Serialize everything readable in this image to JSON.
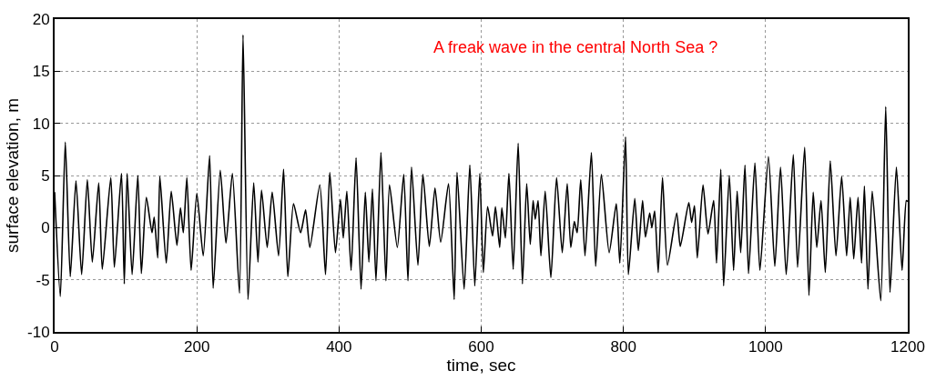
{
  "chart_data": {
    "type": "line",
    "xlabel": "time, sec",
    "ylabel": "surface elevation, m",
    "annotations": [
      "A freak wave in the central North Sea ?"
    ],
    "xlim": [
      0,
      1200
    ],
    "xticks": [
      0,
      200,
      400,
      600,
      800,
      1000,
      1200
    ],
    "ylim": [
      -10,
      20
    ],
    "yticks": [
      -10,
      -5,
      0,
      5,
      10,
      15,
      20
    ],
    "grid": true,
    "marker": "none",
    "line_style": "solid",
    "x": [
      0,
      8,
      15,
      22,
      30,
      38,
      46,
      53,
      62,
      67,
      79,
      84,
      94,
      98,
      102,
      109,
      117,
      122,
      129,
      137,
      140,
      145,
      148,
      157,
      164,
      172,
      177,
      181,
      186,
      192,
      200,
      209,
      218,
      223,
      233,
      241,
      250,
      260,
      265,
      272,
      280,
      286,
      291,
      299,
      306,
      315,
      322,
      328,
      336,
      346,
      353,
      359,
      373,
      381,
      387,
      395,
      402,
      406,
      411,
      417,
      424,
      431,
      437,
      442,
      447,
      452,
      459,
      466,
      471,
      482,
      491,
      497,
      502,
      511,
      518,
      527,
      535,
      543,
      554,
      562,
      566,
      576,
      584,
      591,
      598,
      603,
      609,
      616,
      620,
      626,
      629,
      634,
      639,
      645,
      652,
      658,
      664,
      669,
      673,
      676,
      680,
      684,
      690,
      698,
      706,
      714,
      721,
      726,
      731,
      735,
      740,
      746,
      755,
      761,
      769,
      780,
      790,
      795,
      803,
      807,
      816,
      821,
      827,
      831,
      837,
      840,
      844,
      849,
      855,
      862,
      875,
      880,
      892,
      896,
      900,
      904,
      912,
      919,
      927,
      931,
      937,
      941,
      949,
      955,
      960,
      965,
      971,
      976,
      985,
      992,
      1004,
      1013,
      1021,
      1029,
      1039,
      1045,
      1055,
      1061,
      1067,
      1072,
      1078,
      1084,
      1091,
      1099,
      1107,
      1114,
      1119,
      1124,
      1130,
      1135,
      1139,
      1144,
      1150,
      1162,
      1169,
      1175,
      1184,
      1192,
      1198,
      1200
    ],
    "series": [
      {
        "color": "#000000",
        "values": [
          3.4,
          -6.6,
          8.2,
          -4.7,
          4.5,
          -4.5,
          4.6,
          -3.3,
          4.3,
          -4.0,
          4.8,
          -3.8,
          5.2,
          -5.4,
          5.2,
          -4.5,
          5.0,
          -4.4,
          2.9,
          -0.5,
          1.0,
          -2.9,
          4.9,
          -3.4,
          3.5,
          -1.7,
          1.9,
          -0.5,
          4.8,
          -4.1,
          3.3,
          -2.7,
          6.9,
          -5.8,
          5.5,
          -1.5,
          5.2,
          -6.3,
          18.5,
          -6.9,
          4.3,
          -3.3,
          3.6,
          -1.9,
          3.4,
          -2.7,
          5.6,
          -4.7,
          2.3,
          -0.5,
          1.7,
          -1.9,
          4.1,
          -4.5,
          5.3,
          -2.4,
          2.7,
          -1.0,
          3.5,
          -4.1,
          6.7,
          -5.9,
          3.4,
          -3.3,
          3.7,
          -5.1,
          7.2,
          -5.1,
          4.1,
          -1.9,
          5.1,
          -5.1,
          5.8,
          -3.6,
          5.1,
          -1.8,
          3.8,
          -1.4,
          4.2,
          -6.9,
          5.3,
          -5.9,
          6.0,
          -5.6,
          5.2,
          -4.3,
          2.0,
          -0.8,
          2.0,
          -1.9,
          1.9,
          -1.0,
          5.2,
          -4.0,
          8.1,
          -5.4,
          4.2,
          -1.6,
          2.6,
          0.8,
          2.6,
          -2.7,
          3.5,
          -4.8,
          4.8,
          -2.4,
          4.2,
          -1.9,
          0.6,
          -0.5,
          4.6,
          -2.7,
          7.2,
          -3.7,
          5.1,
          -2.4,
          2.3,
          -3.4,
          8.7,
          -4.5,
          2.8,
          -2.2,
          2.6,
          -0.9,
          1.4,
          0.0,
          1.6,
          -4.3,
          4.8,
          -3.6,
          1.4,
          -1.8,
          2.4,
          0.5,
          2.1,
          -2.9,
          4.1,
          -0.6,
          2.6,
          -3.4,
          5.6,
          -5.6,
          5.0,
          -4.1,
          3.5,
          -2.4,
          6.0,
          -4.4,
          6.2,
          -4.1,
          6.8,
          -3.7,
          5.8,
          -4.5,
          7.0,
          -3.8,
          7.7,
          -6.5,
          3.4,
          -1.9,
          2.6,
          -4.3,
          6.4,
          -2.7,
          4.9,
          -2.7,
          2.9,
          -3.0,
          2.9,
          -3.4,
          4.0,
          -5.9,
          3.5,
          -7.0,
          11.6,
          -6.2,
          5.8,
          -4.1,
          2.6,
          2.5
        ]
      }
    ]
  }
}
